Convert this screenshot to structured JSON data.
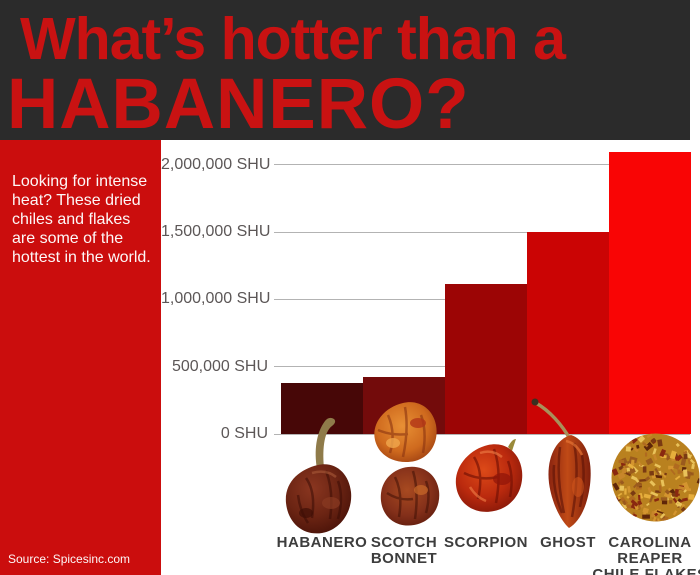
{
  "header": {
    "title_line1": "What’s hotter than a",
    "title_line2": "HABANERO?"
  },
  "sidebar": {
    "description": "Looking for intense\nheat? These dried\nchiles and flakes\nare some of the\nhottest in the world.",
    "source": "Source: Spicesinc.com"
  },
  "colors": {
    "header_bg": "#2b2b2b",
    "title_red": "#c91212",
    "sidebar_bg": "#cb0d0d",
    "grid_line": "#b3b3b3",
    "axis_label": "#5c5757",
    "category_label": "#3d3d3d"
  },
  "chart_data": {
    "type": "bar",
    "title": "What’s hotter than a HABANERO?",
    "unit": "SHU",
    "categories": [
      "HABANERO",
      "SCOTCH BONNET",
      "SCORPION",
      "GHOST",
      "CAROLINA REAPER CHILE FLAKES"
    ],
    "category_label_lines": [
      "HABANERO",
      "SCOTCH\nBONNET",
      "SCORPION",
      "GHOST",
      "CAROLINA\nREAPER\nCHILE FLAKES"
    ],
    "values": [
      380000,
      420000,
      1115000,
      1500000,
      2095000
    ],
    "bar_colors": [
      "#470707",
      "#730b0b",
      "#9c0505",
      "#cb0404",
      "#f90505"
    ],
    "y_ticks": [
      {
        "value": 2000000,
        "label": "2,000,000 SHU"
      },
      {
        "value": 1500000,
        "label": "1,500,000 SHU"
      },
      {
        "value": 1000000,
        "label": "1,000,000 SHU"
      },
      {
        "value": 500000,
        "label": "500,000 SHU"
      },
      {
        "value": 0,
        "label": "0 SHU"
      }
    ],
    "ylim": [
      0,
      2100000
    ],
    "grid": true,
    "legend": false,
    "pepper_images": [
      "habanero",
      "scotch-bonnet",
      "scorpion",
      "ghost",
      "carolina-reaper-chile-flakes"
    ]
  }
}
